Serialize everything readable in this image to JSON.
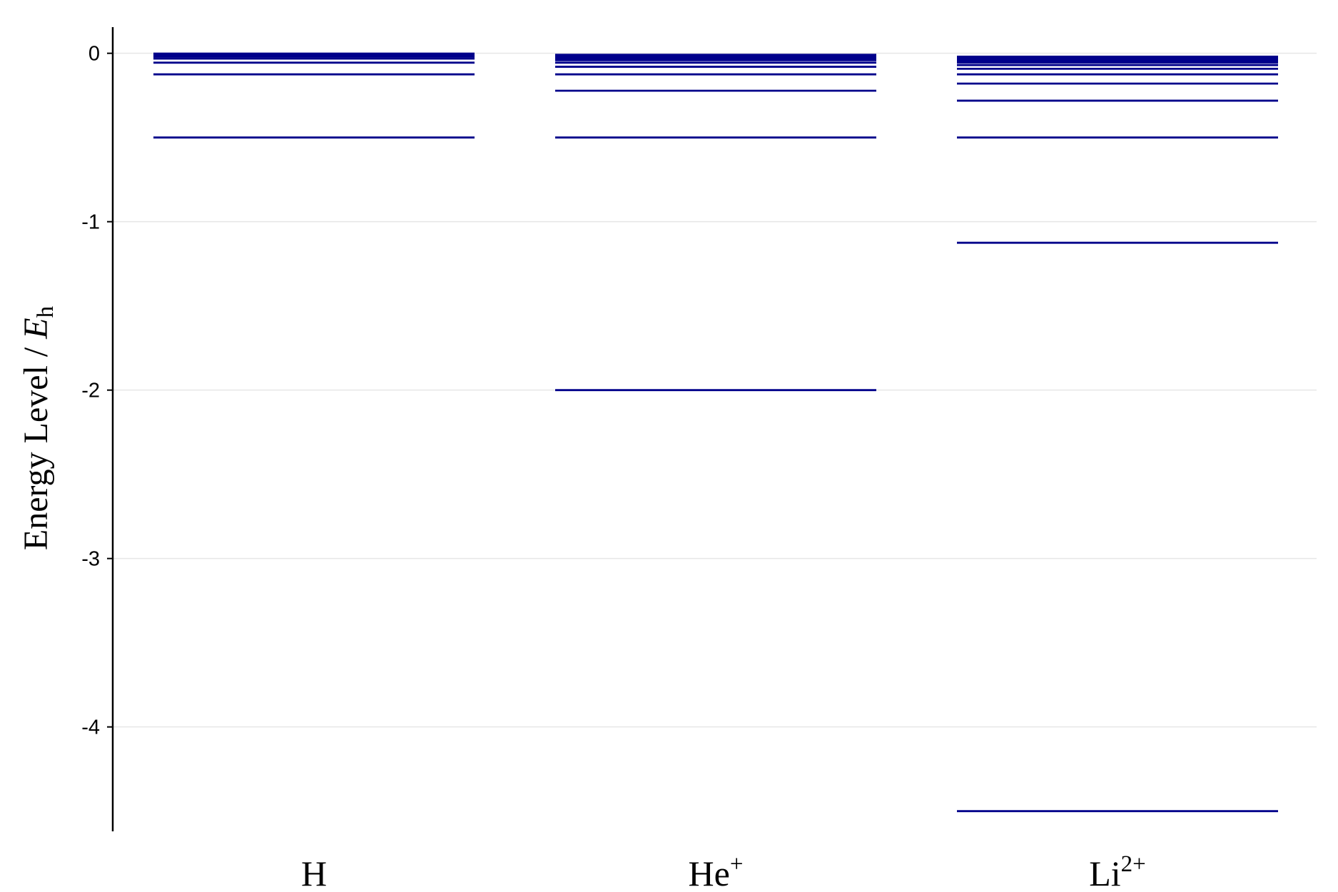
{
  "chart_data": {
    "type": "energy-level diagram",
    "ylabel": {
      "text": "Energy Level / ",
      "symbol": "E",
      "subscript": "h"
    },
    "ylim": [
      -4.62,
      0.13
    ],
    "yticks": [
      0,
      -1,
      -2,
      -3,
      -4
    ],
    "ytick_labels": [
      "0",
      "-1",
      "-2",
      "-3",
      "-4"
    ],
    "grid": "horizontal",
    "line_color": "#00008b",
    "categories": [
      {
        "base": "H",
        "sup": ""
      },
      {
        "base": "He",
        "sup": "+"
      },
      {
        "base": "Li",
        "sup": "2+"
      }
    ],
    "series": [
      {
        "Z": 1,
        "levels": [
          -0.5,
          -0.125,
          -0.0556,
          -0.03125,
          -0.02,
          -0.0139,
          -0.0102,
          -0.0078,
          -0.0062,
          -0.005,
          -0.0041,
          -0.0035,
          -0.003,
          -0.0026,
          -0.0022
        ]
      },
      {
        "Z": 2,
        "levels": [
          -2.0,
          -0.5,
          -0.2222,
          -0.125,
          -0.08,
          -0.0556,
          -0.0408,
          -0.03125,
          -0.0247,
          -0.02,
          -0.0165,
          -0.0139,
          -0.0118,
          -0.0102,
          -0.0089
        ]
      },
      {
        "Z": 3,
        "levels": [
          -4.5,
          -1.125,
          -0.5,
          -0.28125,
          -0.18,
          -0.125,
          -0.0918,
          -0.0703,
          -0.0556,
          -0.045,
          -0.0372,
          -0.03125,
          -0.0266,
          -0.023,
          -0.02
        ]
      }
    ]
  }
}
